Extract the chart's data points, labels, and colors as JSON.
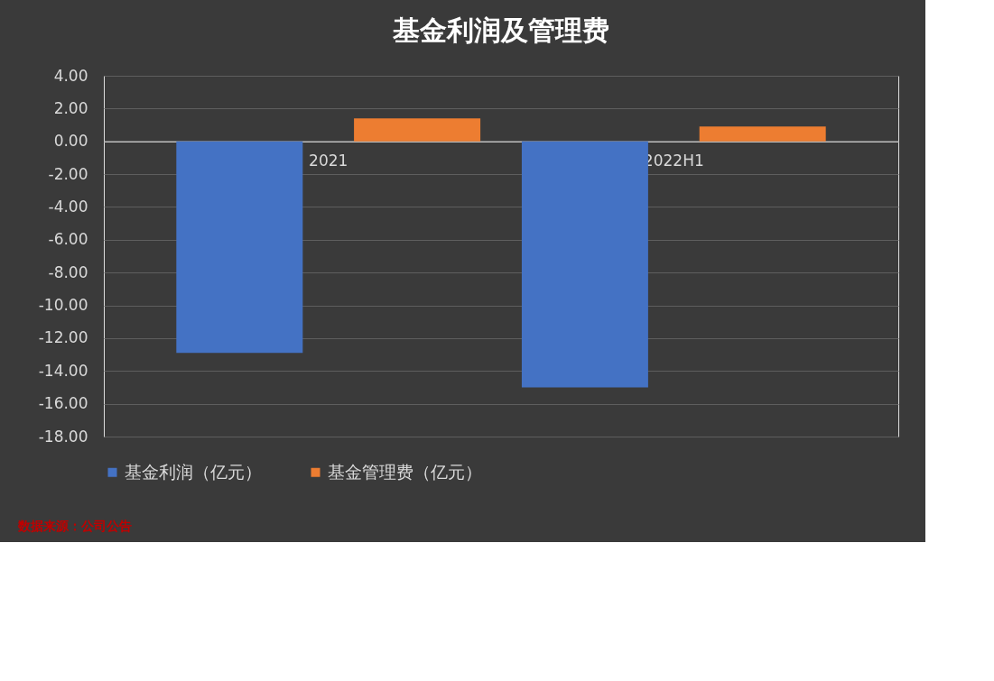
{
  "chart_data": {
    "type": "bar",
    "title": "基金利润及管理费",
    "categories": [
      "2021",
      "2022H1"
    ],
    "series": [
      {
        "name": "基金利润（亿元）",
        "color": "#4472c4",
        "values": [
          -12.9,
          -15.0
        ]
      },
      {
        "name": "基金管理费（亿元）",
        "color": "#ed7d31",
        "values": [
          1.4,
          0.9
        ]
      }
    ],
    "ylim": [
      -18,
      4
    ],
    "yticks": [
      {
        "value": 4,
        "label": "4.00"
      },
      {
        "value": 2,
        "label": "2.00"
      },
      {
        "value": 0,
        "label": "0.00"
      },
      {
        "value": -2,
        "label": "-2.00"
      },
      {
        "value": -4,
        "label": "-4.00"
      },
      {
        "value": -6,
        "label": "-6.00"
      },
      {
        "value": -8,
        "label": "-8.00"
      },
      {
        "value": -10,
        "label": "-10.00"
      },
      {
        "value": -12,
        "label": "-12.00"
      },
      {
        "value": -14,
        "label": "-14.00"
      },
      {
        "value": -16,
        "label": "-16.00"
      },
      {
        "value": -18,
        "label": "-18.00"
      }
    ],
    "grid": "y",
    "legend": "bottom",
    "annotations": [
      "数据来源：公司公告"
    ]
  }
}
